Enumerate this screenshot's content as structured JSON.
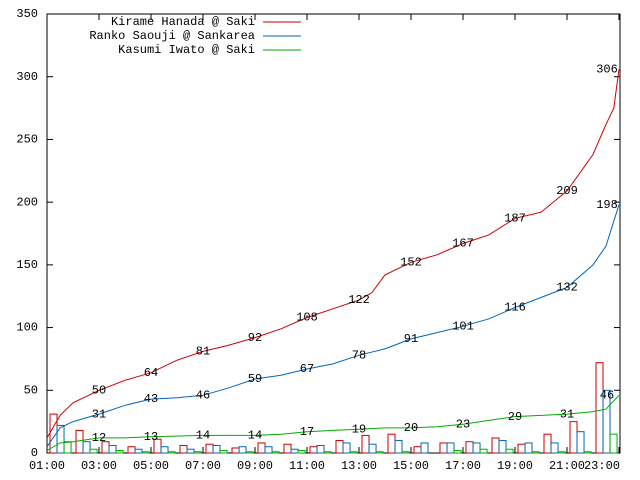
{
  "chart_data": {
    "type": "line",
    "xlim": [
      1,
      23
    ],
    "ylim": [
      0,
      350
    ],
    "yticks": [
      0,
      50,
      100,
      150,
      200,
      250,
      300,
      350
    ],
    "xticks": [
      {
        "value": 1,
        "label": "01:00"
      },
      {
        "value": 3,
        "label": "03:00"
      },
      {
        "value": 5,
        "label": "05:00"
      },
      {
        "value": 7,
        "label": "07:00"
      },
      {
        "value": 9,
        "label": "09:00"
      },
      {
        "value": 11,
        "label": "11:00"
      },
      {
        "value": 13,
        "label": "13:00"
      },
      {
        "value": 15,
        "label": "15:00"
      },
      {
        "value": 17,
        "label": "17:00"
      },
      {
        "value": 19,
        "label": "19:00"
      },
      {
        "value": 21,
        "label": "21:00"
      },
      {
        "value": 23,
        "label": "23:00"
      }
    ],
    "legend": "top-left",
    "series": [
      {
        "name": "Kirame Hanada @ Saki",
        "color": "#cc0000",
        "x": [
          1,
          1.5,
          2,
          3,
          4,
          5,
          6,
          7,
          8,
          9,
          10,
          11,
          12,
          13,
          13.5,
          14,
          15,
          16,
          17,
          18,
          19,
          20,
          21,
          22,
          22.5,
          22.8,
          23
        ],
        "values": [
          12,
          30,
          40,
          50,
          58,
          64,
          74,
          81,
          86,
          92,
          99,
          108,
          115,
          122,
          128,
          142,
          152,
          158,
          167,
          174,
          187,
          192,
          209,
          238,
          262,
          275,
          306
        ],
        "value_labels": [
          null,
          null,
          null,
          "50",
          null,
          "64",
          null,
          "81",
          null,
          "92",
          null,
          "108",
          null,
          "122",
          null,
          null,
          "152",
          null,
          "167",
          null,
          "187",
          null,
          "209",
          null,
          null,
          null,
          "306"
        ]
      },
      {
        "name": "Ranko Saouji @ Sankarea",
        "color": "#0066bb",
        "x": [
          1,
          1.5,
          2,
          3,
          4,
          5,
          6,
          7,
          8,
          9,
          10,
          11,
          12,
          13,
          14,
          15,
          16,
          17,
          18,
          19,
          20,
          21,
          22,
          22.5,
          23
        ],
        "values": [
          5,
          20,
          25,
          31,
          38,
          43,
          44,
          46,
          52,
          59,
          62,
          67,
          71,
          78,
          83,
          91,
          96,
          101,
          107,
          116,
          124,
          132,
          150,
          165,
          198
        ],
        "value_labels": [
          null,
          null,
          null,
          "31",
          null,
          "43",
          null,
          "46",
          null,
          "59",
          null,
          "67",
          null,
          "78",
          null,
          "91",
          null,
          "101",
          null,
          "116",
          null,
          "132",
          null,
          null,
          "198"
        ]
      },
      {
        "name": "Kasumi Iwato @ Saki",
        "color": "#00aa00",
        "x": [
          1,
          1.5,
          2,
          3,
          4,
          5,
          7,
          9,
          10,
          11,
          12,
          13,
          14,
          15,
          16,
          17,
          18,
          19,
          20,
          21,
          22,
          22.5,
          23
        ],
        "values": [
          2,
          8,
          9,
          12,
          12,
          13,
          14,
          14,
          15,
          17,
          18,
          19,
          20,
          20,
          21,
          23,
          26,
          29,
          30,
          31,
          33,
          35,
          46
        ],
        "value_labels": [
          null,
          null,
          null,
          "12",
          null,
          "13",
          "14",
          "14",
          null,
          "17",
          null,
          "19",
          null,
          "20",
          null,
          "23",
          null,
          "29",
          null,
          "31",
          null,
          null,
          "46"
        ]
      }
    ],
    "bars": {
      "x": [
        1,
        2,
        3,
        4,
        5,
        6,
        7,
        8,
        9,
        10,
        11,
        12,
        13,
        14,
        15,
        16,
        17,
        18,
        19,
        20,
        21,
        22
      ],
      "series": [
        [
          31,
          18,
          9,
          5,
          11,
          6,
          7,
          4,
          8,
          7,
          5,
          10,
          14,
          15,
          5,
          8,
          9,
          12,
          7,
          15,
          25,
          72
        ],
        [
          22,
          9,
          6,
          3,
          5,
          3,
          6,
          5,
          5,
          3,
          6,
          8,
          7,
          10,
          8,
          8,
          8,
          10,
          8,
          8,
          17,
          50
        ],
        [
          9,
          3,
          2,
          1,
          1,
          1,
          2,
          1,
          1,
          2,
          1,
          1,
          1,
          1,
          0,
          2,
          3,
          3,
          1,
          1,
          1,
          15
        ]
      ]
    }
  }
}
